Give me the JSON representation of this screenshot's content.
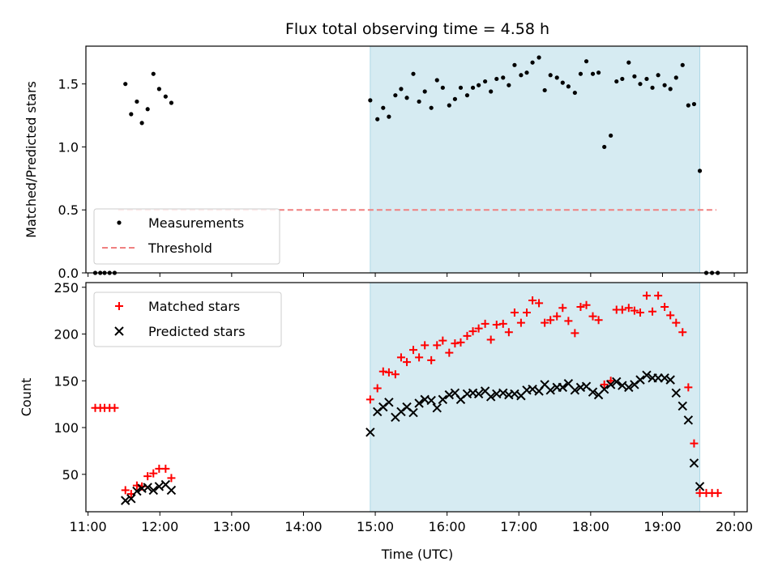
{
  "title": "Flux total observing time = 4.58 h",
  "xlabel": "Time (UTC)",
  "x_ticks": [
    "11:00",
    "12:00",
    "13:00",
    "14:00",
    "15:00",
    "16:00",
    "17:00",
    "18:00",
    "19:00",
    "20:00"
  ],
  "colors": {
    "measure": "#000000",
    "threshold": "#f08080",
    "matched": "#ff0000",
    "predicted": "#000000",
    "span": "#add8e6"
  },
  "chart_data": [
    {
      "type": "scatter",
      "ylabel": "Matched/Predicted stars",
      "y_ticks": [
        "0.0",
        "0.5",
        "1.0",
        "1.5"
      ],
      "xlim": [
        10.97,
        20.18
      ],
      "ylim": [
        0,
        1.8
      ],
      "shaded_span": [
        14.93,
        19.52
      ],
      "legend": {
        "placement": "lower left",
        "entries": [
          "Measurements",
          "Threshold"
        ]
      },
      "threshold": {
        "name": "Threshold",
        "y": 0.5,
        "x": [
          11.42,
          19.75
        ]
      },
      "series": [
        {
          "name": "Measurements",
          "points": [
            [
              11.1,
              0
            ],
            [
              11.17,
              0
            ],
            [
              11.23,
              0
            ],
            [
              11.3,
              0
            ],
            [
              11.37,
              0
            ],
            [
              11.52,
              1.5
            ],
            [
              11.6,
              1.26
            ],
            [
              11.68,
              1.36
            ],
            [
              11.75,
              1.19
            ],
            [
              11.83,
              1.3
            ],
            [
              11.91,
              1.58
            ],
            [
              11.99,
              1.46
            ],
            [
              12.08,
              1.4
            ],
            [
              12.16,
              1.35
            ],
            [
              14.93,
              1.37
            ],
            [
              15.03,
              1.22
            ],
            [
              15.11,
              1.31
            ],
            [
              15.19,
              1.24
            ],
            [
              15.28,
              1.41
            ],
            [
              15.36,
              1.46
            ],
            [
              15.44,
              1.39
            ],
            [
              15.53,
              1.58
            ],
            [
              15.61,
              1.36
            ],
            [
              15.69,
              1.44
            ],
            [
              15.78,
              1.31
            ],
            [
              15.86,
              1.53
            ],
            [
              15.94,
              1.47
            ],
            [
              16.03,
              1.33
            ],
            [
              16.11,
              1.38
            ],
            [
              16.19,
              1.47
            ],
            [
              16.28,
              1.41
            ],
            [
              16.36,
              1.47
            ],
            [
              16.44,
              1.49
            ],
            [
              16.53,
              1.52
            ],
            [
              16.61,
              1.44
            ],
            [
              16.69,
              1.54
            ],
            [
              16.78,
              1.55
            ],
            [
              16.86,
              1.49
            ],
            [
              16.94,
              1.65
            ],
            [
              17.03,
              1.57
            ],
            [
              17.11,
              1.59
            ],
            [
              17.19,
              1.67
            ],
            [
              17.28,
              1.71
            ],
            [
              17.36,
              1.45
            ],
            [
              17.44,
              1.57
            ],
            [
              17.53,
              1.55
            ],
            [
              17.61,
              1.51
            ],
            [
              17.69,
              1.48
            ],
            [
              17.78,
              1.43
            ],
            [
              17.86,
              1.58
            ],
            [
              17.94,
              1.68
            ],
            [
              18.03,
              1.58
            ],
            [
              18.11,
              1.59
            ],
            [
              18.19,
              1.0
            ],
            [
              18.28,
              1.09
            ],
            [
              18.36,
              1.52
            ],
            [
              18.44,
              1.54
            ],
            [
              18.53,
              1.67
            ],
            [
              18.61,
              1.56
            ],
            [
              18.69,
              1.5
            ],
            [
              18.78,
              1.54
            ],
            [
              18.86,
              1.47
            ],
            [
              18.94,
              1.57
            ],
            [
              19.03,
              1.49
            ],
            [
              19.11,
              1.46
            ],
            [
              19.19,
              1.55
            ],
            [
              19.28,
              1.65
            ],
            [
              19.36,
              1.33
            ],
            [
              19.44,
              1.34
            ],
            [
              19.52,
              0.81
            ],
            [
              19.61,
              0
            ],
            [
              19.69,
              0
            ],
            [
              19.77,
              0
            ]
          ]
        }
      ]
    },
    {
      "type": "scatter",
      "ylabel": "Count",
      "y_ticks": [
        "50",
        "100",
        "150",
        "200",
        "250"
      ],
      "xlim": [
        10.97,
        20.18
      ],
      "ylim": [
        10,
        255
      ],
      "shaded_span": [
        14.93,
        19.52
      ],
      "legend": {
        "placement": "upper left",
        "entries": [
          "Matched stars",
          "Predicted stars"
        ]
      },
      "series": [
        {
          "name": "Matched stars",
          "marker": "+",
          "points": [
            [
              11.1,
              121
            ],
            [
              11.17,
              121
            ],
            [
              11.23,
              121
            ],
            [
              11.3,
              121
            ],
            [
              11.37,
              121
            ],
            [
              11.52,
              33
            ],
            [
              11.6,
              29
            ],
            [
              11.68,
              38
            ],
            [
              11.75,
              37
            ],
            [
              11.83,
              48
            ],
            [
              11.91,
              51
            ],
            [
              11.99,
              56
            ],
            [
              12.08,
              56
            ],
            [
              12.16,
              46
            ],
            [
              14.93,
              130
            ],
            [
              15.03,
              142
            ],
            [
              15.11,
              160
            ],
            [
              15.19,
              159
            ],
            [
              15.28,
              157
            ],
            [
              15.36,
              175
            ],
            [
              15.44,
              170
            ],
            [
              15.53,
              183
            ],
            [
              15.61,
              175
            ],
            [
              15.69,
              188
            ],
            [
              15.78,
              172
            ],
            [
              15.86,
              188
            ],
            [
              15.94,
              193
            ],
            [
              16.03,
              180
            ],
            [
              16.11,
              190
            ],
            [
              16.19,
              191
            ],
            [
              16.28,
              198
            ],
            [
              16.36,
              203
            ],
            [
              16.44,
              206
            ],
            [
              16.53,
              211
            ],
            [
              16.61,
              194
            ],
            [
              16.69,
              210
            ],
            [
              16.78,
              211
            ],
            [
              16.86,
              202
            ],
            [
              16.94,
              223
            ],
            [
              17.03,
              212
            ],
            [
              17.11,
              223
            ],
            [
              17.19,
              236
            ],
            [
              17.28,
              233
            ],
            [
              17.36,
              212
            ],
            [
              17.44,
              215
            ],
            [
              17.53,
              219
            ],
            [
              17.61,
              228
            ],
            [
              17.69,
              214
            ],
            [
              17.78,
              201
            ],
            [
              17.86,
              229
            ],
            [
              17.94,
              231
            ],
            [
              18.03,
              219
            ],
            [
              18.11,
              215
            ],
            [
              18.19,
              146
            ],
            [
              18.28,
              150
            ],
            [
              18.36,
              226
            ],
            [
              18.44,
              226
            ],
            [
              18.53,
              228
            ],
            [
              18.61,
              225
            ],
            [
              18.69,
              223
            ],
            [
              18.78,
              241
            ],
            [
              18.86,
              224
            ],
            [
              18.94,
              241
            ],
            [
              19.03,
              229
            ],
            [
              19.11,
              220
            ],
            [
              19.19,
              212
            ],
            [
              19.28,
              202
            ],
            [
              19.36,
              143
            ],
            [
              19.44,
              83
            ],
            [
              19.52,
              30
            ],
            [
              19.61,
              30
            ],
            [
              19.69,
              30
            ],
            [
              19.77,
              30
            ]
          ]
        },
        {
          "name": "Predicted stars",
          "marker": "x",
          "points": [
            [
              11.52,
              22
            ],
            [
              11.6,
              24
            ],
            [
              11.68,
              32
            ],
            [
              11.75,
              35
            ],
            [
              11.83,
              36
            ],
            [
              11.91,
              33
            ],
            [
              11.99,
              37
            ],
            [
              12.08,
              39
            ],
            [
              12.16,
              33
            ],
            [
              14.93,
              95
            ],
            [
              15.03,
              117
            ],
            [
              15.11,
              122
            ],
            [
              15.19,
              127
            ],
            [
              15.28,
              111
            ],
            [
              15.36,
              117
            ],
            [
              15.44,
              122
            ],
            [
              15.53,
              116
            ],
            [
              15.61,
              126
            ],
            [
              15.69,
              130
            ],
            [
              15.78,
              129
            ],
            [
              15.86,
              121
            ],
            [
              15.94,
              130
            ],
            [
              16.03,
              135
            ],
            [
              16.11,
              137
            ],
            [
              16.19,
              130
            ],
            [
              16.28,
              136
            ],
            [
              16.36,
              137
            ],
            [
              16.44,
              136
            ],
            [
              16.53,
              139
            ],
            [
              16.61,
              133
            ],
            [
              16.69,
              136
            ],
            [
              16.78,
              137
            ],
            [
              16.86,
              135
            ],
            [
              16.94,
              136
            ],
            [
              17.03,
              134
            ],
            [
              17.11,
              140
            ],
            [
              17.19,
              141
            ],
            [
              17.28,
              139
            ],
            [
              17.36,
              146
            ],
            [
              17.44,
              140
            ],
            [
              17.53,
              143
            ],
            [
              17.61,
              143
            ],
            [
              17.69,
              147
            ],
            [
              17.78,
              140
            ],
            [
              17.86,
              143
            ],
            [
              17.94,
              144
            ],
            [
              18.03,
              138
            ],
            [
              18.11,
              135
            ],
            [
              18.19,
              141
            ],
            [
              18.28,
              146
            ],
            [
              18.36,
              149
            ],
            [
              18.44,
              145
            ],
            [
              18.53,
              143
            ],
            [
              18.61,
              146
            ],
            [
              18.69,
              151
            ],
            [
              18.78,
              156
            ],
            [
              18.86,
              153
            ],
            [
              18.94,
              153
            ],
            [
              19.03,
              153
            ],
            [
              19.11,
              151
            ],
            [
              19.19,
              137
            ],
            [
              19.28,
              123
            ],
            [
              19.36,
              108
            ],
            [
              19.44,
              62
            ],
            [
              19.52,
              37
            ]
          ]
        }
      ]
    }
  ]
}
